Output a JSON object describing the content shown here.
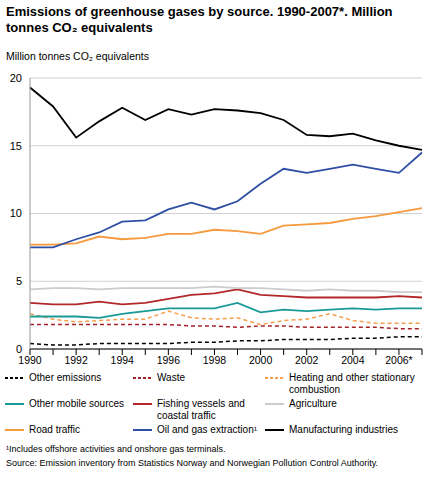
{
  "chart_data": {
    "type": "line",
    "title": "Emissions of greenhouse gases by source. 1990-2007*. Million tonnes CO₂ equivalents",
    "ylabel": "Million tonnes CO₂ equivalents",
    "categories": [
      "1990",
      null,
      "1992",
      null,
      "1994",
      null,
      "1996",
      null,
      "1998",
      null,
      "2000",
      null,
      "2002",
      null,
      "2004",
      null,
      "2006*",
      null
    ],
    "series": [
      {
        "name": "Other emissions",
        "color": "#000000",
        "line_style": "dashed",
        "values": [
          0.4,
          0.3,
          0.3,
          0.4,
          0.4,
          0.4,
          0.4,
          0.5,
          0.5,
          0.6,
          0.6,
          0.7,
          0.7,
          0.7,
          0.8,
          0.8,
          0.9,
          0.9
        ]
      },
      {
        "name": "Waste",
        "color": "#a3232b",
        "line_style": "dashed",
        "values": [
          1.8,
          1.8,
          1.8,
          1.8,
          1.8,
          1.8,
          1.8,
          1.7,
          1.7,
          1.6,
          1.7,
          1.7,
          1.6,
          1.6,
          1.6,
          1.6,
          1.5,
          1.5
        ]
      },
      {
        "name": "Heating and other stationary combustion",
        "color": "#f6a04d",
        "line_style": "dashed",
        "values": [
          2.6,
          2.2,
          2.0,
          2.1,
          2.2,
          2.2,
          2.8,
          2.3,
          2.2,
          2.3,
          1.8,
          2.1,
          2.2,
          2.6,
          2.1,
          1.9,
          1.9,
          1.9
        ]
      },
      {
        "name": "Other mobile sources",
        "color": "#1a9a96",
        "line_style": "solid",
        "values": [
          2.4,
          2.4,
          2.4,
          2.3,
          2.6,
          2.8,
          3.0,
          3.0,
          3.0,
          3.4,
          2.7,
          2.9,
          2.8,
          2.9,
          3.0,
          2.9,
          3.0,
          3.0
        ]
      },
      {
        "name": "Fishing vessels and coastal traffic",
        "color": "#b3292b",
        "line_style": "solid",
        "values": [
          3.4,
          3.3,
          3.3,
          3.5,
          3.3,
          3.4,
          3.7,
          4.0,
          4.1,
          4.4,
          4.0,
          3.9,
          3.8,
          3.8,
          3.8,
          3.8,
          3.9,
          3.8
        ]
      },
      {
        "name": "Agriculture",
        "color": "#cccccc",
        "line_style": "solid",
        "values": [
          4.4,
          4.5,
          4.5,
          4.4,
          4.5,
          4.5,
          4.5,
          4.5,
          4.6,
          4.5,
          4.5,
          4.4,
          4.3,
          4.4,
          4.3,
          4.3,
          4.2,
          4.2
        ]
      },
      {
        "name": "Road traffic",
        "color": "#f59a3f",
        "line_style": "solid",
        "values": [
          7.7,
          7.7,
          7.8,
          8.3,
          8.1,
          8.2,
          8.5,
          8.5,
          8.8,
          8.7,
          8.5,
          9.1,
          9.2,
          9.3,
          9.6,
          9.8,
          10.1,
          10.4
        ]
      },
      {
        "name": "Oil and gas extraction¹",
        "color": "#2e4fa3",
        "line_style": "solid",
        "values": [
          7.5,
          7.5,
          8.1,
          8.6,
          9.4,
          9.5,
          10.3,
          10.8,
          10.3,
          10.9,
          12.2,
          13.3,
          13.0,
          13.3,
          13.6,
          13.3,
          13.0,
          14.5
        ]
      },
      {
        "name": "Manufacturing industries",
        "color": "#000000",
        "line_style": "solid",
        "values": [
          19.3,
          17.9,
          15.6,
          16.8,
          17.8,
          16.9,
          17.7,
          17.3,
          17.7,
          17.6,
          17.4,
          16.9,
          15.8,
          15.7,
          15.9,
          15.4,
          15.0,
          14.7
        ]
      }
    ],
    "ylim": [
      0,
      20
    ],
    "yticks": [
      0,
      5,
      10,
      15,
      20
    ],
    "grid": true,
    "legend": "bottom",
    "footnote": "¹Includes offshore activities and onshore gas terminals.",
    "source": "Source: Emission inventory from Statistics Norway and Norwegian Pollution Control Authority."
  }
}
